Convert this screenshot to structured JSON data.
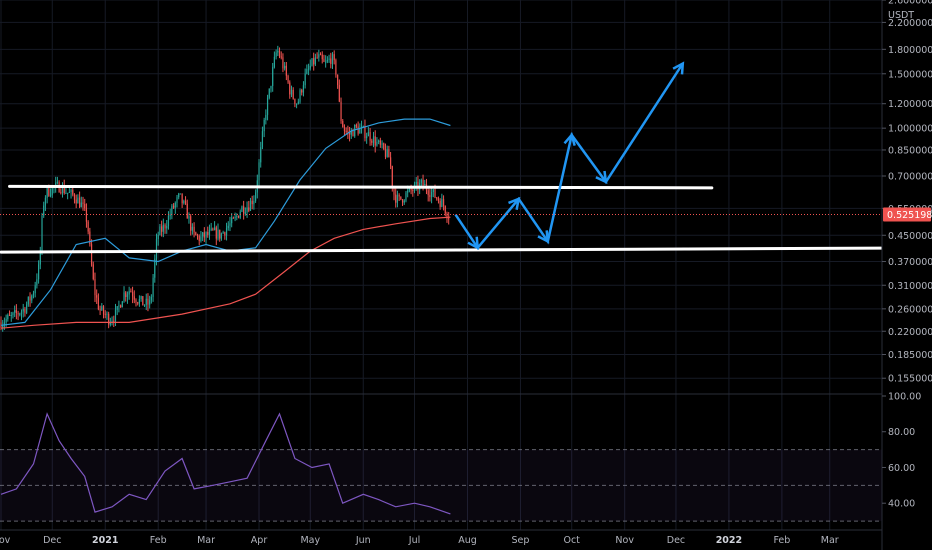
{
  "chart_data": {
    "type": "candlestick",
    "currency": "USDT",
    "price_axis": {
      "scale": "log",
      "range": [
        0.1378,
        2.6
      ],
      "ticks": [
        {
          "value": 2.6,
          "label": "2.60000000"
        },
        {
          "value": 2.2,
          "label": "2.20000000"
        },
        {
          "value": 1.8,
          "label": "1.80000000"
        },
        {
          "value": 1.5,
          "label": "1.50000000"
        },
        {
          "value": 1.2,
          "label": "1.20000000"
        },
        {
          "value": 1.0,
          "label": "1.00000000"
        },
        {
          "value": 0.85,
          "label": "0.85000000"
        },
        {
          "value": 0.7,
          "label": "0.70000000"
        },
        {
          "value": 0.55,
          "label": "0.55000000"
        },
        {
          "value": 0.45,
          "label": "0.45000000"
        },
        {
          "value": 0.37,
          "label": "0.37000000"
        },
        {
          "value": 0.31,
          "label": "0.31000000"
        },
        {
          "value": 0.26,
          "label": "0.26000000"
        },
        {
          "value": 0.22,
          "label": "0.22000000"
        },
        {
          "value": 0.185,
          "label": "0.18500000"
        },
        {
          "value": 0.155,
          "label": "0.15500000"
        }
      ]
    },
    "last_price": {
      "value": 0.52519817,
      "label": "0.52519817",
      "color": "#ef5350"
    },
    "time_axis": {
      "range": [
        "2020-11-01",
        "2022-03-31"
      ],
      "labels": [
        {
          "date": "2020-11-01",
          "label": "Nov",
          "bold": false
        },
        {
          "date": "2020-12-01",
          "label": "Dec",
          "bold": false
        },
        {
          "date": "2021-01-01",
          "label": "2021",
          "bold": true
        },
        {
          "date": "2021-02-01",
          "label": "Feb",
          "bold": false
        },
        {
          "date": "2021-03-01",
          "label": "Mar",
          "bold": false
        },
        {
          "date": "2021-04-01",
          "label": "Apr",
          "bold": false
        },
        {
          "date": "2021-05-01",
          "label": "May",
          "bold": false
        },
        {
          "date": "2021-06-01",
          "label": "Jun",
          "bold": false
        },
        {
          "date": "2021-07-01",
          "label": "Jul",
          "bold": false
        },
        {
          "date": "2021-08-01",
          "label": "Aug",
          "bold": false
        },
        {
          "date": "2021-09-01",
          "label": "Sep",
          "bold": false
        },
        {
          "date": "2021-10-01",
          "label": "Oct",
          "bold": false
        },
        {
          "date": "2021-11-01",
          "label": "Nov",
          "bold": false
        },
        {
          "date": "2021-12-01",
          "label": "Dec",
          "bold": false
        },
        {
          "date": "2022-01-01",
          "label": "2022",
          "bold": true
        },
        {
          "date": "2022-02-01",
          "label": "Feb",
          "bold": false
        },
        {
          "date": "2022-03-01",
          "label": "Mar",
          "bold": false
        }
      ]
    },
    "price_path": [
      [
        "2020-11-01",
        0.235
      ],
      [
        "2020-11-08",
        0.245
      ],
      [
        "2020-11-15",
        0.26
      ],
      [
        "2020-11-20",
        0.29
      ],
      [
        "2020-11-24",
        0.36
      ],
      [
        "2020-11-26",
        0.56
      ],
      [
        "2020-11-28",
        0.62
      ],
      [
        "2020-12-02",
        0.64
      ],
      [
        "2020-12-06",
        0.65
      ],
      [
        "2020-12-10",
        0.62
      ],
      [
        "2020-12-15",
        0.6
      ],
      [
        "2020-12-19",
        0.56
      ],
      [
        "2020-12-22",
        0.5
      ],
      [
        "2020-12-24",
        0.38
      ],
      [
        "2020-12-26",
        0.3
      ],
      [
        "2020-12-29",
        0.26
      ],
      [
        "2021-01-01",
        0.25
      ],
      [
        "2021-01-04",
        0.24
      ],
      [
        "2021-01-08",
        0.25
      ],
      [
        "2021-01-12",
        0.29
      ],
      [
        "2021-01-16",
        0.3
      ],
      [
        "2021-01-20",
        0.28
      ],
      [
        "2021-01-24",
        0.27
      ],
      [
        "2021-01-28",
        0.27
      ],
      [
        "2021-01-30",
        0.35
      ],
      [
        "2021-02-01",
        0.45
      ],
      [
        "2021-02-05",
        0.48
      ],
      [
        "2021-02-10",
        0.55
      ],
      [
        "2021-02-14",
        0.6
      ],
      [
        "2021-02-18",
        0.54
      ],
      [
        "2021-02-22",
        0.45
      ],
      [
        "2021-02-26",
        0.44
      ],
      [
        "2021-03-02",
        0.45
      ],
      [
        "2021-03-06",
        0.46
      ],
      [
        "2021-03-10",
        0.45
      ],
      [
        "2021-03-14",
        0.48
      ],
      [
        "2021-03-18",
        0.5
      ],
      [
        "2021-03-22",
        0.55
      ],
      [
        "2021-03-26",
        0.56
      ],
      [
        "2021-03-30",
        0.6
      ],
      [
        "2021-04-02",
        0.8
      ],
      [
        "2021-04-05",
        1.1
      ],
      [
        "2021-04-08",
        1.35
      ],
      [
        "2021-04-10",
        1.6
      ],
      [
        "2021-04-12",
        1.8
      ],
      [
        "2021-04-14",
        1.7
      ],
      [
        "2021-04-17",
        1.5
      ],
      [
        "2021-04-20",
        1.3
      ],
      [
        "2021-04-24",
        1.2
      ],
      [
        "2021-04-28",
        1.45
      ],
      [
        "2021-05-02",
        1.6
      ],
      [
        "2021-05-06",
        1.7
      ],
      [
        "2021-05-10",
        1.6
      ],
      [
        "2021-05-14",
        1.7
      ],
      [
        "2021-05-17",
        1.5
      ],
      [
        "2021-05-19",
        1.1
      ],
      [
        "2021-05-21",
        1.0
      ],
      [
        "2021-05-24",
        0.95
      ],
      [
        "2021-05-28",
        1.0
      ],
      [
        "2021-06-01",
        0.98
      ],
      [
        "2021-06-05",
        0.95
      ],
      [
        "2021-06-09",
        0.9
      ],
      [
        "2021-06-13",
        0.85
      ],
      [
        "2021-06-17",
        0.8
      ],
      [
        "2021-06-19",
        0.62
      ],
      [
        "2021-06-22",
        0.58
      ],
      [
        "2021-06-25",
        0.6
      ],
      [
        "2021-06-28",
        0.62
      ],
      [
        "2021-07-02",
        0.64
      ],
      [
        "2021-07-06",
        0.66
      ],
      [
        "2021-07-10",
        0.63
      ],
      [
        "2021-07-14",
        0.6
      ],
      [
        "2021-07-18",
        0.57
      ],
      [
        "2021-07-21",
        0.525
      ]
    ],
    "moving_averages": [
      {
        "color": "#2d9cdb",
        "points": [
          [
            "2020-11-01",
            0.23
          ],
          [
            "2020-11-15",
            0.235
          ],
          [
            "2020-11-30",
            0.3
          ],
          [
            "2020-12-15",
            0.42
          ],
          [
            "2021-01-01",
            0.44
          ],
          [
            "2021-01-15",
            0.38
          ],
          [
            "2021-02-01",
            0.37
          ],
          [
            "2021-02-15",
            0.4
          ],
          [
            "2021-03-01",
            0.42
          ],
          [
            "2021-03-15",
            0.4
          ],
          [
            "2021-03-30",
            0.41
          ],
          [
            "2021-04-10",
            0.5
          ],
          [
            "2021-04-25",
            0.68
          ],
          [
            "2021-05-10",
            0.86
          ],
          [
            "2021-05-25",
            0.98
          ],
          [
            "2021-06-10",
            1.04
          ],
          [
            "2021-06-25",
            1.07
          ],
          [
            "2021-07-10",
            1.07
          ],
          [
            "2021-07-22",
            1.02
          ]
        ]
      },
      {
        "color": "#ef5350",
        "points": [
          [
            "2020-11-01",
            0.225
          ],
          [
            "2020-11-20",
            0.23
          ],
          [
            "2020-12-15",
            0.235
          ],
          [
            "2021-01-15",
            0.235
          ],
          [
            "2021-02-15",
            0.25
          ],
          [
            "2021-03-15",
            0.27
          ],
          [
            "2021-03-30",
            0.29
          ],
          [
            "2021-04-15",
            0.34
          ],
          [
            "2021-05-01",
            0.4
          ],
          [
            "2021-05-15",
            0.44
          ],
          [
            "2021-06-01",
            0.47
          ],
          [
            "2021-06-20",
            0.49
          ],
          [
            "2021-07-10",
            0.51
          ],
          [
            "2021-07-22",
            0.515
          ]
        ]
      }
    ],
    "horizontal_lines": [
      {
        "color": "#ffffff",
        "start": [
          "2020-11-06",
          0.648
        ],
        "end": [
          "2021-12-22",
          0.641
        ]
      },
      {
        "color": "#ffffff",
        "start": [
          "2020-11-01",
          0.397
        ],
        "end": [
          "2022-03-31",
          0.409
        ]
      }
    ],
    "projection_path": {
      "color": "#2196f3",
      "points": [
        [
          "2021-07-25",
          0.525
        ],
        [
          "2021-08-07",
          0.41
        ],
        [
          "2021-08-31",
          0.59
        ],
        [
          "2021-09-17",
          0.43
        ],
        [
          "2021-10-01",
          0.95
        ],
        [
          "2021-10-21",
          0.67
        ],
        [
          "2021-12-05",
          1.62
        ]
      ]
    },
    "rsi": {
      "range": [
        25,
        100
      ],
      "ticks": [
        {
          "value": 100,
          "label": "100.00"
        },
        {
          "value": 80,
          "label": "80.00"
        },
        {
          "value": 60,
          "label": "60.00"
        },
        {
          "value": 40,
          "label": "40.00"
        }
      ],
      "bands": [
        70,
        50,
        30
      ],
      "color": "#7e57c2",
      "points": [
        [
          "2020-11-01",
          45
        ],
        [
          "2020-11-10",
          48
        ],
        [
          "2020-11-20",
          62
        ],
        [
          "2020-11-28",
          90
        ],
        [
          "2020-12-05",
          75
        ],
        [
          "2020-12-12",
          65
        ],
        [
          "2020-12-20",
          55
        ],
        [
          "2020-12-26",
          35
        ],
        [
          "2021-01-05",
          38
        ],
        [
          "2021-01-15",
          45
        ],
        [
          "2021-01-25",
          42
        ],
        [
          "2021-02-05",
          58
        ],
        [
          "2021-02-15",
          65
        ],
        [
          "2021-02-22",
          48
        ],
        [
          "2021-03-05",
          50
        ],
        [
          "2021-03-15",
          52
        ],
        [
          "2021-03-25",
          54
        ],
        [
          "2021-04-05",
          75
        ],
        [
          "2021-04-13",
          90
        ],
        [
          "2021-04-22",
          65
        ],
        [
          "2021-05-02",
          60
        ],
        [
          "2021-05-12",
          62
        ],
        [
          "2021-05-20",
          40
        ],
        [
          "2021-06-01",
          45
        ],
        [
          "2021-06-10",
          42
        ],
        [
          "2021-06-20",
          38
        ],
        [
          "2021-07-01",
          40
        ],
        [
          "2021-07-10",
          38
        ],
        [
          "2021-07-22",
          34
        ]
      ]
    }
  }
}
